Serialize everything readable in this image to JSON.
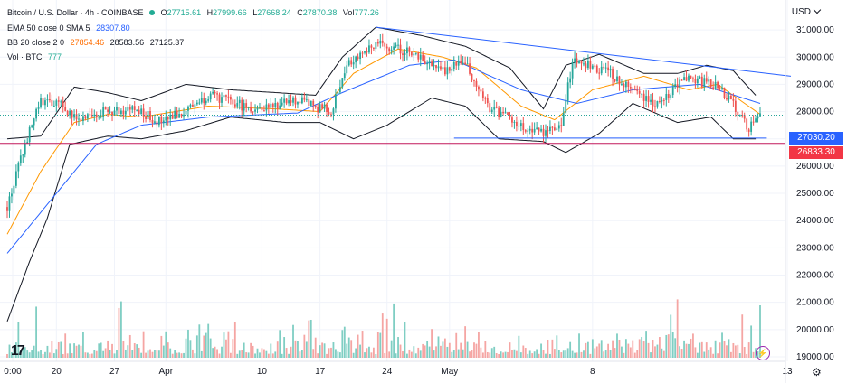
{
  "header": {
    "symbol_title": "Bitcoin / U.S. Dollar · 4h · COINBASE",
    "ohlc": {
      "o_label": "O",
      "o": "27715.61",
      "h_label": "H",
      "h": "27999.66",
      "l_label": "L",
      "l": "27668.24",
      "c_label": "C",
      "c": "27870.38",
      "vol_label": "Vol",
      "vol": "777.26"
    },
    "ema": {
      "label": "EMA 50 close 0 SMA 5",
      "value": "28307.80"
    },
    "bb": {
      "label": "BB 20 close 2 0",
      "basis": "27854.46",
      "upper": "28583.56",
      "lower": "27125.37"
    },
    "vol": {
      "label": "Vol · BTC",
      "value": "777"
    },
    "currency": "USD"
  },
  "price_tags": [
    {
      "label": "27030.20",
      "color": "#2962ff"
    },
    {
      "label": "26833.30",
      "color": "#f23645"
    }
  ],
  "chart_data": {
    "type": "candlestick",
    "x_ticks": [
      "0:00",
      "20",
      "27",
      "Apr",
      "10",
      "17",
      "24",
      "May",
      "8",
      "13"
    ],
    "y_ticks": [
      "31000.00",
      "30000.00",
      "29000.00",
      "28000.00",
      "27000.00",
      "26000.00",
      "25000.00",
      "24000.00",
      "23000.00",
      "22000.00",
      "21000.00",
      "20000.00",
      "19000.00"
    ],
    "ylim": [
      19000,
      31600
    ],
    "series": [
      {
        "name": "Price",
        "waypoints": [
          [
            0,
            24500
          ],
          [
            8,
            26800
          ],
          [
            15,
            28400
          ],
          [
            25,
            28200
          ],
          [
            32,
            27600
          ],
          [
            42,
            28000
          ],
          [
            55,
            28100
          ],
          [
            70,
            27600
          ],
          [
            90,
            28600
          ],
          [
            110,
            28100
          ],
          [
            130,
            28400
          ],
          [
            145,
            28000
          ],
          [
            152,
            29800
          ],
          [
            165,
            30500
          ],
          [
            180,
            30200
          ],
          [
            195,
            29500
          ],
          [
            205,
            29800
          ],
          [
            215,
            28200
          ],
          [
            235,
            27200
          ],
          [
            248,
            27400
          ],
          [
            253,
            29900
          ],
          [
            270,
            29400
          ],
          [
            290,
            28300
          ],
          [
            305,
            29300
          ],
          [
            320,
            28800
          ],
          [
            332,
            27400
          ],
          [
            337,
            27870
          ]
        ]
      },
      {
        "name": "EMA 50",
        "waypoints": [
          [
            0,
            22800
          ],
          [
            20,
            24800
          ],
          [
            40,
            26800
          ],
          [
            60,
            27500
          ],
          [
            90,
            27800
          ],
          [
            130,
            27950
          ],
          [
            150,
            28700
          ],
          [
            180,
            29700
          ],
          [
            200,
            29900
          ],
          [
            230,
            28800
          ],
          [
            255,
            28300
          ],
          [
            280,
            28800
          ],
          [
            310,
            29000
          ],
          [
            337,
            28300
          ]
        ]
      },
      {
        "name": "BB upper",
        "waypoints": [
          [
            0,
            27000
          ],
          [
            15,
            27100
          ],
          [
            30,
            28900
          ],
          [
            45,
            28700
          ],
          [
            60,
            28400
          ],
          [
            80,
            29000
          ],
          [
            100,
            28800
          ],
          [
            120,
            28700
          ],
          [
            138,
            28600
          ],
          [
            150,
            30000
          ],
          [
            165,
            31100
          ],
          [
            185,
            30800
          ],
          [
            205,
            30400
          ],
          [
            225,
            29600
          ],
          [
            240,
            28100
          ],
          [
            250,
            29700
          ],
          [
            265,
            30100
          ],
          [
            285,
            29400
          ],
          [
            300,
            29400
          ],
          [
            313,
            29700
          ],
          [
            325,
            29500
          ],
          [
            335,
            28600
          ]
        ]
      },
      {
        "name": "BB basis",
        "waypoints": [
          [
            0,
            23500
          ],
          [
            15,
            25800
          ],
          [
            30,
            27600
          ],
          [
            45,
            27900
          ],
          [
            60,
            27800
          ],
          [
            90,
            28200
          ],
          [
            120,
            28100
          ],
          [
            140,
            28000
          ],
          [
            155,
            29400
          ],
          [
            175,
            30300
          ],
          [
            195,
            30000
          ],
          [
            210,
            29600
          ],
          [
            230,
            28200
          ],
          [
            245,
            27700
          ],
          [
            262,
            28800
          ],
          [
            285,
            29300
          ],
          [
            305,
            28800
          ],
          [
            318,
            29000
          ],
          [
            337,
            27900
          ]
        ]
      },
      {
        "name": "BB lower",
        "waypoints": [
          [
            0,
            20300
          ],
          [
            10,
            22500
          ],
          [
            18,
            24100
          ],
          [
            28,
            26800
          ],
          [
            45,
            27100
          ],
          [
            60,
            27000
          ],
          [
            80,
            27300
          ],
          [
            100,
            27800
          ],
          [
            125,
            27600
          ],
          [
            140,
            27600
          ],
          [
            155,
            27000
          ],
          [
            170,
            27500
          ],
          [
            190,
            28500
          ],
          [
            205,
            28200
          ],
          [
            220,
            27000
          ],
          [
            240,
            26900
          ],
          [
            250,
            26500
          ],
          [
            265,
            27200
          ],
          [
            280,
            28300
          ],
          [
            300,
            27600
          ],
          [
            315,
            27800
          ],
          [
            325,
            27000
          ],
          [
            335,
            27000
          ]
        ]
      },
      {
        "name": "Support line",
        "points": [
          [
            200,
            27030
          ],
          [
            340,
            27030
          ]
        ]
      },
      {
        "name": "Resistance line",
        "points": [
          [
            165,
            31100
          ],
          [
            340,
            29300
          ]
        ]
      },
      {
        "name": "Level 26833.30",
        "value": 26833.3
      }
    ],
    "candle_count": 338
  }
}
